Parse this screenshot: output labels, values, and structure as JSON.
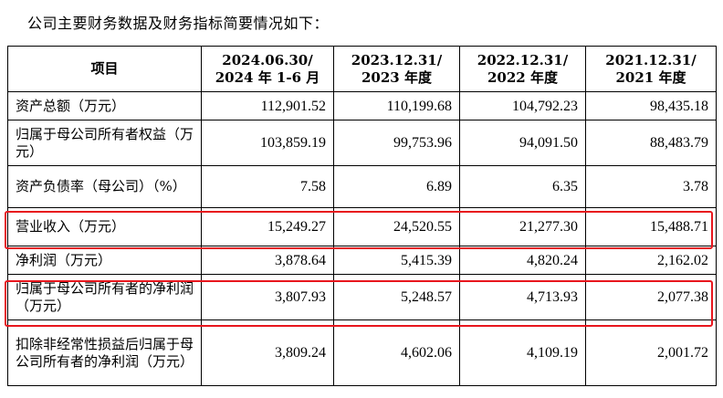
{
  "intro": "公司主要财务数据及财务指标简要情况如下：",
  "table": {
    "headers": [
      {
        "line1": "项目",
        "line2": ""
      },
      {
        "line1": "2024.06.30/",
        "line2": "2024 年 1-6 月"
      },
      {
        "line1": "2023.12.31/",
        "line2": "2023 年度"
      },
      {
        "line1": "2022.12.31/",
        "line2": "2022 年度"
      },
      {
        "line1": "2021.12.31/",
        "line2": "2021 年度"
      }
    ],
    "rows": [
      {
        "label": "资产总额（万元）",
        "values": [
          "112,901.52",
          "110,199.68",
          "104,792.23",
          "98,435.18"
        ]
      },
      {
        "label": "归属于母公司所有者权益（万元）",
        "values": [
          "103,859.19",
          "99,753.96",
          "94,091.50",
          "88,483.79"
        ]
      },
      {
        "label": "资产负债率（母公司）（%）",
        "values": [
          "7.58",
          "6.89",
          "6.35",
          "3.78"
        ]
      },
      {
        "label": "营业收入（万元）",
        "values": [
          "15,249.27",
          "24,520.55",
          "21,277.30",
          "15,488.71"
        ]
      },
      {
        "label": "净利润（万元）",
        "values": [
          "3,878.64",
          "5,415.39",
          "4,820.24",
          "2,162.02"
        ]
      },
      {
        "label": "归属于母公司所有者的净利润（万元）",
        "values": [
          "3,807.93",
          "5,248.57",
          "4,713.93",
          "2,077.38"
        ]
      },
      {
        "label": "扣除非经常性损益后归属于母公司所有者的净利润（万元）",
        "values": [
          "3,809.24",
          "4,602.06",
          "4,109.19",
          "2,001.72"
        ]
      }
    ]
  },
  "highlight_color": "#e8161d"
}
